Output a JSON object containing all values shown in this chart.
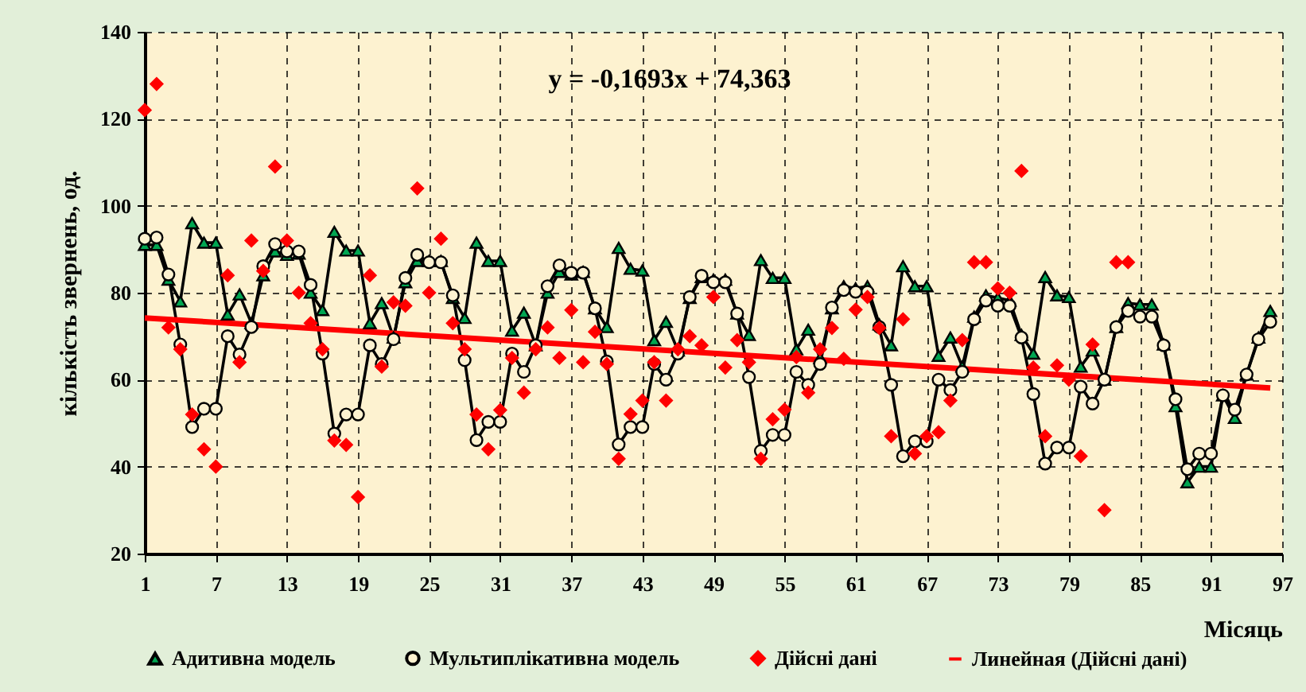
{
  "chart_data": {
    "type": "line",
    "xlabel": "Місяць",
    "ylabel": "кількість звернень, од.",
    "annotations": [
      "y = -0,1693x + 74,363"
    ],
    "x": [
      1,
      2,
      3,
      4,
      5,
      6,
      7,
      8,
      9,
      10,
      11,
      12,
      13,
      14,
      15,
      16,
      17,
      18,
      19,
      20,
      21,
      22,
      23,
      24,
      25,
      26,
      27,
      28,
      29,
      30,
      31,
      32,
      33,
      34,
      35,
      36,
      37,
      38,
      39,
      40,
      41,
      42,
      43,
      44,
      45,
      46,
      47,
      48,
      49,
      50,
      51,
      52,
      53,
      54,
      55,
      56,
      57,
      58,
      59,
      60,
      61,
      62,
      63,
      64,
      65,
      66,
      67,
      68,
      69,
      70,
      71,
      72,
      73,
      74,
      75,
      76,
      77,
      78,
      79,
      80,
      81,
      82,
      83,
      84,
      85,
      86,
      87,
      88,
      89,
      90,
      91,
      92,
      93,
      94,
      95,
      96
    ],
    "xlim": [
      1,
      97
    ],
    "xticks": [
      1,
      7,
      13,
      19,
      25,
      31,
      37,
      43,
      49,
      55,
      61,
      67,
      73,
      79,
      85,
      91,
      97
    ],
    "ylim": [
      20,
      140
    ],
    "yticks": [
      20,
      40,
      60,
      80,
      100,
      120,
      140
    ],
    "grid": true,
    "legend": "bottom",
    "line_style": "solid",
    "series": [
      {
        "name": "Адитивна модель",
        "marker": "triangle",
        "color": "#00a651",
        "values": [
          91,
          91,
          83,
          78,
          96,
          91.5,
          91.5,
          75,
          79.6,
          73,
          84,
          89.5,
          88.7,
          89,
          80,
          76,
          94,
          89.7,
          89.7,
          73,
          77.6,
          69.7,
          82.4,
          87.3,
          87.3,
          87.3,
          78.8,
          74.2,
          91.5,
          87.3,
          87.3,
          71.3,
          75.4,
          67.9,
          80,
          84.8,
          84.2,
          84.8,
          76.4,
          72.1,
          90.3,
          85.5,
          85.1,
          69.1,
          73.3,
          66.7,
          78.8,
          83.6,
          83,
          83,
          75.2,
          70.3,
          87.5,
          83.4,
          83.4,
          67,
          71.5,
          65,
          76.4,
          81.5,
          81,
          81.5,
          72.7,
          67.9,
          86.1,
          81.5,
          81.5,
          65.5,
          69.7,
          63,
          74.5,
          79.4,
          78.8,
          78.2,
          70.3,
          66,
          83.6,
          79.4,
          79,
          63,
          66.7,
          60,
          72.1,
          77.6,
          77.3,
          77.3,
          68.1,
          53.9,
          36.4,
          40,
          40,
          56.4,
          51.2,
          61.2,
          69.7,
          75.8
        ]
      },
      {
        "name": "Мультиплікативна модель",
        "marker": "circle",
        "color": "#000000",
        "values": [
          92.4,
          92.7,
          84.2,
          68.1,
          49.1,
          53.3,
          53.3,
          70,
          65.8,
          72.1,
          86.1,
          91.2,
          89.5,
          89.5,
          81.8,
          66,
          47.6,
          52,
          52,
          67.9,
          63.6,
          69.3,
          83.4,
          88.7,
          87,
          87,
          79.4,
          64.5,
          46.1,
          50.3,
          50.3,
          66,
          61.8,
          67.9,
          81.5,
          86.3,
          84.6,
          84.6,
          76.4,
          64.2,
          45.1,
          49.1,
          49.1,
          63.6,
          60,
          66,
          79,
          83.9,
          82.4,
          82.4,
          75.2,
          60.6,
          43.6,
          47.3,
          47.3,
          61.8,
          58.8,
          63.6,
          76.6,
          80.6,
          80.2,
          80.2,
          72.1,
          58.8,
          42.4,
          45.8,
          45.8,
          60,
          57.6,
          61.8,
          73.9,
          78.2,
          77,
          77,
          69.7,
          56.7,
          40.7,
          44.4,
          44.4,
          58.4,
          54.5,
          60,
          72.1,
          75.8,
          74.5,
          74.5,
          67.9,
          55.5,
          39.4,
          43,
          43,
          56.4,
          53.1,
          61.2,
          69.3,
          73.3
        ]
      },
      {
        "name": "Дійсні дані",
        "type": "scatter",
        "marker": "diamond",
        "color": "#ff0000",
        "values": [
          122,
          128,
          72,
          67,
          52,
          44,
          40,
          84,
          64,
          92,
          85,
          109,
          92,
          80,
          73,
          67,
          46,
          45,
          33,
          84,
          63,
          77.8,
          77,
          104,
          80,
          92.4,
          73,
          67,
          52,
          44,
          53,
          65,
          57,
          67,
          72,
          65,
          76,
          64,
          71,
          63.6,
          41.8,
          52.1,
          55.2,
          64,
          55.2,
          67,
          70,
          67.9,
          79,
          62.8,
          69.1,
          64,
          41.8,
          50.9,
          53.1,
          65.2,
          57,
          67,
          71.9,
          64.8,
          76.1,
          79,
          71.9,
          47,
          73.9,
          43,
          47,
          47.9,
          55.2,
          69.1,
          87,
          87,
          81,
          80,
          108,
          62.8,
          47,
          63.3,
          60,
          42.4,
          68.1,
          30,
          87,
          87,
          null,
          null,
          null,
          null,
          null,
          null,
          null,
          null,
          null,
          null,
          null,
          null
        ]
      },
      {
        "name": "Линейная (Дійсні дані)",
        "marker": "none",
        "color": "#ff0000",
        "x": [
          1,
          96
        ],
        "values": [
          74.2,
          58.1
        ]
      }
    ]
  }
}
